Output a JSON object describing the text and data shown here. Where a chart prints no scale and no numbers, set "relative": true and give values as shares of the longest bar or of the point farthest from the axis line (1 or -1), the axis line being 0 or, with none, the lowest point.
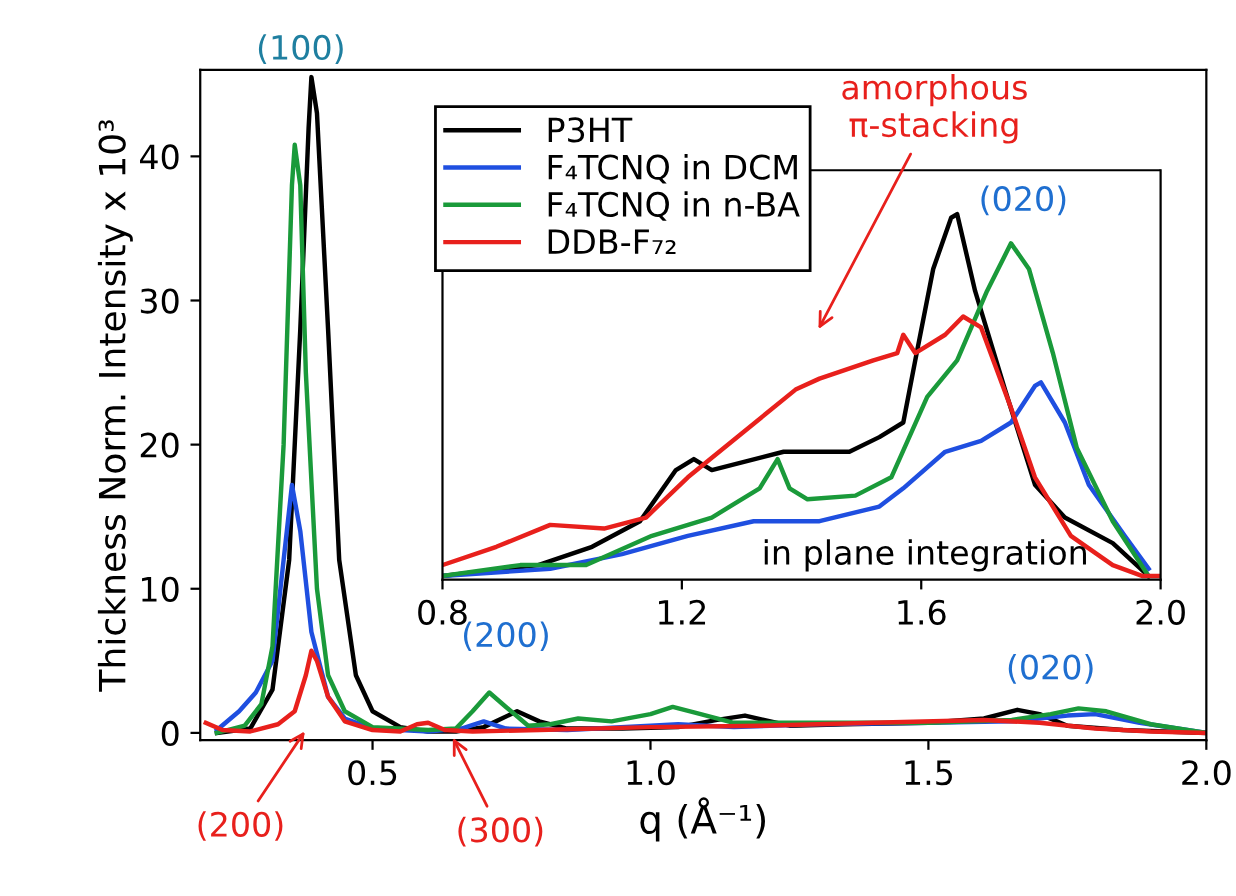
{
  "chart_data": [
    {
      "type": "line",
      "xlabel": "q (Å⁻¹)",
      "ylabel": "Thickness Norm. Intensity x 10³",
      "xlim": [
        0.19,
        2.0
      ],
      "xticks": [
        {
          "value": 0.5,
          "label": "0.5"
        },
        {
          "value": 1.0,
          "label": "1.0"
        },
        {
          "value": 1.5,
          "label": "1.5"
        },
        {
          "value": 2.0,
          "label": "2.0"
        }
      ],
      "ylim": [
        -0.5,
        46
      ],
      "yticks": [
        0,
        10,
        20,
        30,
        40
      ],
      "legend": "top",
      "grid": false,
      "annotations": [
        "(100)",
        {
          "text": "(200)",
          "x": 0.71,
          "y": 2.8
        },
        {
          "text": "(020)",
          "x": 1.72,
          "y": 1.7
        },
        "(200)",
        {
          "text": "(300)",
          "x": 0.64,
          "y": 0
        }
      ],
      "series": [
        {
          "name": "P3HT",
          "color": "#000000",
          "x": [
            0.22,
            0.28,
            0.32,
            0.35,
            0.37,
            0.385,
            0.39,
            0.4,
            0.42,
            0.44,
            0.47,
            0.5,
            0.55,
            0.6,
            0.65,
            0.7,
            0.76,
            0.8,
            0.85,
            0.95,
            1.05,
            1.12,
            1.17,
            1.25,
            1.35,
            1.5,
            1.6,
            1.66,
            1.7,
            1.75,
            1.85,
            2.0
          ],
          "values": [
            0,
            0.3,
            3,
            12,
            28,
            42,
            45.5,
            43,
            28,
            12,
            4,
            1.5,
            0.4,
            0.1,
            0.1,
            0.4,
            1.5,
            0.8,
            0.3,
            0.3,
            0.4,
            0.9,
            1.2,
            0.5,
            0.6,
            0.7,
            1.0,
            1.6,
            1.3,
            0.5,
            0.2,
            0
          ]
        },
        {
          "name": "F₄TCNQ in DCM",
          "color": "#1f4fe0",
          "x": [
            0.22,
            0.26,
            0.29,
            0.32,
            0.34,
            0.355,
            0.37,
            0.39,
            0.42,
            0.45,
            0.5,
            0.6,
            0.66,
            0.7,
            0.74,
            0.85,
            1.0,
            1.05,
            1.15,
            1.3,
            1.5,
            1.65,
            1.75,
            1.8,
            1.88,
            2.0
          ],
          "values": [
            0.2,
            1.5,
            2.8,
            5,
            12,
            17.2,
            14,
            7,
            2.5,
            1,
            0.3,
            0.1,
            0.3,
            0.8,
            0.3,
            0.2,
            0.5,
            0.6,
            0.4,
            0.6,
            0.7,
            0.8,
            1.2,
            1.3,
            0.7,
            0
          ]
        },
        {
          "name": "F₄TCNQ in n-BA",
          "color": "#1a9a3a",
          "x": [
            0.22,
            0.27,
            0.3,
            0.32,
            0.34,
            0.355,
            0.36,
            0.37,
            0.38,
            0.4,
            0.42,
            0.45,
            0.5,
            0.6,
            0.65,
            0.68,
            0.71,
            0.74,
            0.78,
            0.82,
            0.87,
            0.93,
            1.0,
            1.04,
            1.08,
            1.15,
            1.3,
            1.5,
            1.65,
            1.72,
            1.77,
            1.82,
            1.9,
            2.0
          ],
          "values": [
            0,
            0.5,
            2,
            6,
            20,
            38,
            40.8,
            38,
            25,
            10,
            4,
            1.5,
            0.4,
            0.2,
            0.3,
            1.5,
            2.8,
            1.8,
            0.5,
            0.6,
            1.0,
            0.8,
            1.3,
            1.8,
            1.4,
            0.7,
            0.7,
            0.7,
            0.9,
            1.3,
            1.7,
            1.5,
            0.6,
            0
          ]
        },
        {
          "name": "DDB-F₇₂",
          "color": "#e8201c",
          "x": [
            0.2,
            0.23,
            0.28,
            0.33,
            0.36,
            0.38,
            0.39,
            0.4,
            0.42,
            0.45,
            0.5,
            0.55,
            0.58,
            0.6,
            0.63,
            0.68,
            0.8,
            1.0,
            1.2,
            1.4,
            1.6,
            1.7,
            1.8,
            1.9,
            2.0
          ],
          "values": [
            0.7,
            0.2,
            0.1,
            0.6,
            1.5,
            4,
            5.7,
            5,
            2.5,
            0.8,
            0.2,
            0.1,
            0.6,
            0.7,
            0.2,
            0.1,
            0.2,
            0.4,
            0.5,
            0.7,
            0.9,
            0.7,
            0.3,
            0.1,
            0
          ]
        }
      ]
    },
    {
      "type": "line",
      "relative": true,
      "xlim": [
        0.8,
        2.0
      ],
      "xticks": [
        {
          "value": 0.8,
          "label": "0.8"
        },
        {
          "value": 1.2,
          "label": "1.2"
        },
        {
          "value": 1.6,
          "label": "1.6"
        },
        {
          "value": 2.0,
          "label": "2.0"
        }
      ],
      "tick_labels": "x",
      "grid": false,
      "annotations": [
        "amorphous\nπ-stacking",
        {
          "text": "(020)",
          "x": 1.65,
          "y": 0.99
        },
        "in plane integration"
      ],
      "series": [
        {
          "color": "#000000",
          "x": [
            0.8,
            0.96,
            1.05,
            1.13,
            1.19,
            1.22,
            1.25,
            1.37,
            1.48,
            1.53,
            1.57,
            1.59,
            1.62,
            1.65,
            1.66,
            1.69,
            1.74,
            1.79,
            1.84,
            1.92,
            1.98
          ],
          "values": [
            0.01,
            0.04,
            0.09,
            0.16,
            0.3,
            0.33,
            0.3,
            0.35,
            0.35,
            0.39,
            0.43,
            0.6,
            0.85,
            0.99,
            1,
            0.79,
            0.52,
            0.26,
            0.17,
            0.1,
            0.01
          ]
        },
        {
          "color": "#1f4fe0",
          "x": [
            0.8,
            0.98,
            1.1,
            1.21,
            1.32,
            1.43,
            1.53,
            1.57,
            1.64,
            1.7,
            1.75,
            1.79,
            1.8,
            1.84,
            1.88,
            1.94,
            1.98
          ],
          "values": [
            0.01,
            0.03,
            0.07,
            0.12,
            0.16,
            0.16,
            0.2,
            0.25,
            0.35,
            0.38,
            0.43,
            0.53,
            0.54,
            0.43,
            0.26,
            0.12,
            0.03
          ]
        },
        {
          "color": "#1a9a3a",
          "x": [
            0.8,
            0.93,
            1.04,
            1.15,
            1.25,
            1.33,
            1.36,
            1.38,
            1.41,
            1.49,
            1.55,
            1.61,
            1.66,
            1.71,
            1.75,
            1.78,
            1.82,
            1.86,
            1.92,
            1.98
          ],
          "values": [
            0.01,
            0.04,
            0.04,
            0.12,
            0.17,
            0.25,
            0.33,
            0.25,
            0.22,
            0.23,
            0.28,
            0.5,
            0.6,
            0.79,
            0.92,
            0.85,
            0.62,
            0.36,
            0.16,
            0.01
          ]
        },
        {
          "color": "#e8201c",
          "x": [
            0.8,
            0.89,
            0.98,
            1.07,
            1.14,
            1.21,
            1.3,
            1.39,
            1.43,
            1.52,
            1.56,
            1.57,
            1.59,
            1.64,
            1.67,
            1.7,
            1.75,
            1.79,
            1.85,
            1.92,
            1.97,
            2.0
          ],
          "values": [
            0.04,
            0.09,
            0.15,
            0.14,
            0.17,
            0.28,
            0.4,
            0.52,
            0.55,
            0.6,
            0.62,
            0.67,
            0.62,
            0.67,
            0.72,
            0.69,
            0.47,
            0.28,
            0.12,
            0.04,
            0.01,
            0.01
          ]
        }
      ]
    }
  ]
}
